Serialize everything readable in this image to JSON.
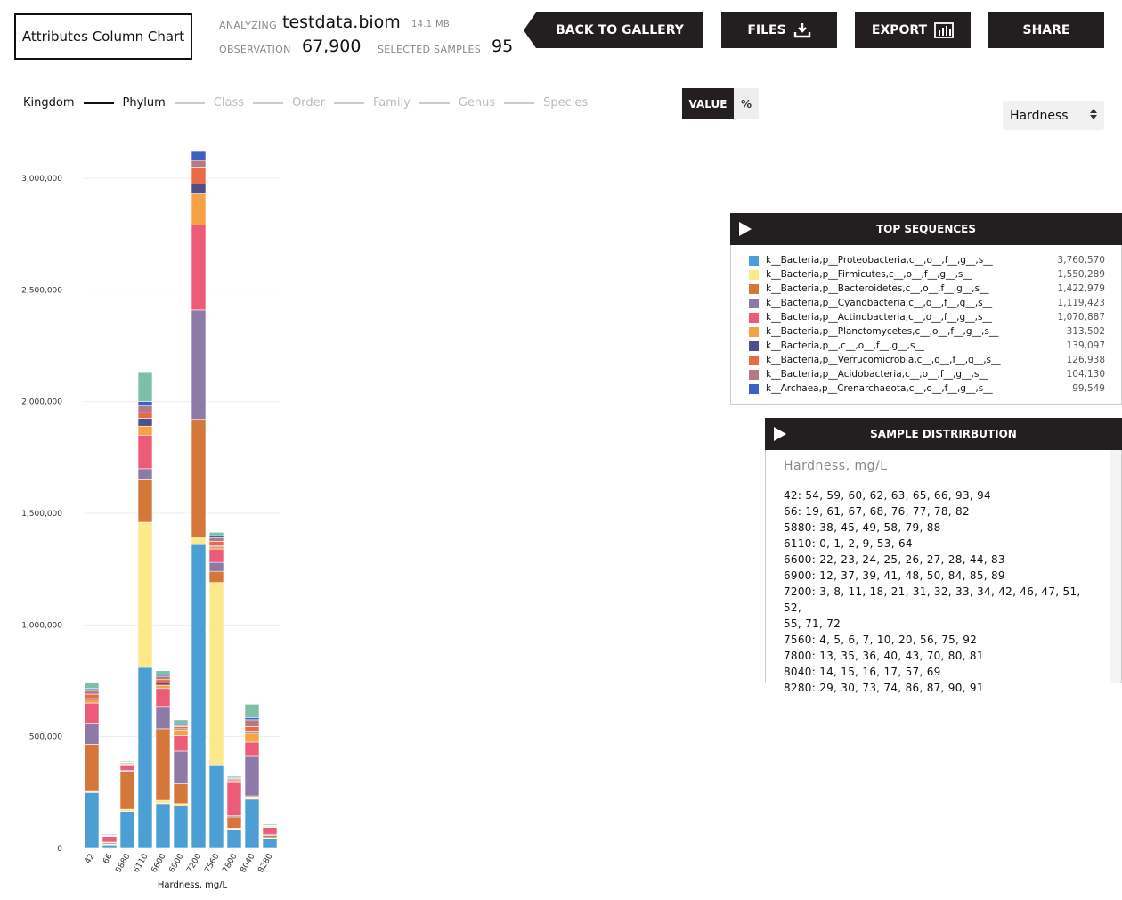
{
  "app": {
    "title": "Attributes Column Chart"
  },
  "meta": {
    "analyzing_label": "ANALYZING",
    "file_name": "testdata.biom",
    "file_size": "14.1 MB",
    "observation_label": "OBSERVATION",
    "observation_value": "67,900",
    "selected_label": "SELECTED SAMPLES",
    "selected_value": "95"
  },
  "nav": {
    "back_label": "BACK TO GALLERY",
    "files_label": "FILES",
    "export_label": "EXPORT",
    "share_label": "SHARE"
  },
  "taxonomy": {
    "levels": [
      "Kingdom",
      "Phylum",
      "Class",
      "Order",
      "Family",
      "Genus",
      "Species"
    ],
    "active_count": 2
  },
  "toggle": {
    "value_label": "VALUE",
    "percent_label": "%"
  },
  "attribute_select": {
    "selected": "Hardness"
  },
  "top_sequences": {
    "title": "TOP SEQUENCES",
    "items": [
      {
        "name": "k__Bacteria,p__Proteobacteria,c__,o__,f__,g__,s__",
        "count": "3,760,570",
        "color": "#4b9fd5"
      },
      {
        "name": "k__Bacteria,p__Firmicutes,c__,o__,f__,g__,s__",
        "count": "1,550,289",
        "color": "#fce98c"
      },
      {
        "name": "k__Bacteria,p__Bacteroidetes,c__,o__,f__,g__,s__",
        "count": "1,422,979",
        "color": "#d5773a"
      },
      {
        "name": "k__Bacteria,p__Cyanobacteria,c__,o__,f__,g__,s__",
        "count": "1,119,423",
        "color": "#8e7aa6"
      },
      {
        "name": "k__Bacteria,p__Actinobacteria,c__,o__,f__,g__,s__",
        "count": "1,070,887",
        "color": "#ee5b78"
      },
      {
        "name": "k__Bacteria,p__Planctomycetes,c__,o__,f__,g__,s__",
        "count": "313,502",
        "color": "#f7a145"
      },
      {
        "name": "k__Bacteria,p__,c__,o__,f__,g__,s__",
        "count": "139,097",
        "color": "#4f4f8a"
      },
      {
        "name": "k__Bacteria,p__Verrucomicrobia,c__,o__,f__,g__,s__",
        "count": "126,938",
        "color": "#ea6a45"
      },
      {
        "name": "k__Bacteria,p__Acidobacteria,c__,o__,f__,g__,s__",
        "count": "104,130",
        "color": "#b57a86"
      },
      {
        "name": "k__Archaea,p__Crenarchaeota,c__,o__,f__,g__,s__",
        "count": "99,549",
        "color": "#3b5fc4"
      }
    ]
  },
  "sample_distribution": {
    "title": "SAMPLE DISTRIRBUTION",
    "attribute": "Hardness, mg/L",
    "lines": [
      "42: 54, 59, 60, 62, 63, 65, 66, 93, 94",
      "66: 19, 61, 67, 68, 76, 77, 78, 82",
      "5880: 38, 45, 49, 58, 79, 88",
      "6110: 0, 1, 2, 9, 53, 64",
      "6600: 22, 23, 24, 25, 26, 27, 28, 44, 83",
      "6900: 12, 37, 39, 41, 48, 50, 84, 85, 89",
      "7200: 3, 8, 11, 18, 21, 31, 32, 33, 34, 42, 46, 47, 51, 52,",
      "55, 71, 72",
      "7560: 4, 5, 6, 7, 10, 20, 56, 75, 92",
      "7800: 13, 35, 36, 40, 43, 70, 80, 81",
      "8040: 14, 15, 16, 17, 57, 69",
      "8280: 29, 30, 73, 74, 86, 87, 90, 91"
    ]
  },
  "chart_data": {
    "type": "bar",
    "stacked": true,
    "xlabel": "Hardness, mg/L",
    "ylabel": "",
    "ylim": [
      0,
      3000000
    ],
    "yticks": [
      0,
      500000,
      1000000,
      1500000,
      2000000,
      2500000,
      3000000
    ],
    "ytick_labels": [
      "0",
      "500,000",
      "1,000,000",
      "1,500,000",
      "2,000,000",
      "2,500,000",
      "3,000,000"
    ],
    "grid": true,
    "categories": [
      "42",
      "66",
      "5880",
      "6110",
      "6600",
      "6900",
      "7200",
      "7560",
      "7800",
      "8040",
      "8280"
    ],
    "series": [
      {
        "name": "k__Bacteria,p__Proteobacteria,c__,o__,f__,g__,s__",
        "color": "#4b9fd5",
        "values": [
          250000,
          15000,
          165000,
          810000,
          200000,
          190000,
          1360000,
          370000,
          85000,
          220000,
          45000
        ]
      },
      {
        "name": "k__Bacteria,p__Firmicutes,c__,o__,f__,g__,s__",
        "color": "#fce98c",
        "values": [
          5000,
          5000,
          10000,
          650000,
          15000,
          10000,
          30000,
          820000,
          5000,
          10000,
          3000
        ]
      },
      {
        "name": "k__Bacteria,p__Bacteroidetes,c__,o__,f__,g__,s__",
        "color": "#d5773a",
        "values": [
          210000,
          5000,
          170000,
          190000,
          320000,
          90000,
          530000,
          50000,
          50000,
          5000,
          10000
        ]
      },
      {
        "name": "k__Bacteria,p__Cyanobacteria,c__,o__,f__,g__,s__",
        "color": "#8e7aa6",
        "values": [
          95000,
          3000,
          5000,
          50000,
          100000,
          145000,
          490000,
          40000,
          5000,
          180000,
          5000
        ]
      },
      {
        "name": "k__Bacteria,p__Actinobacteria,c__,o__,f__,g__,s__",
        "color": "#ee5b78",
        "values": [
          90000,
          25000,
          20000,
          150000,
          80000,
          70000,
          380000,
          60000,
          150000,
          60000,
          30000
        ]
      },
      {
        "name": "k__Bacteria,p__Planctomycetes,c__,o__,f__,g__,s__",
        "color": "#f7a145",
        "values": [
          15000,
          2000,
          5000,
          40000,
          15000,
          25000,
          140000,
          10000,
          5000,
          40000,
          3000
        ]
      },
      {
        "name": "k__Bacteria,p__,c__,o__,f__,g__,s__",
        "color": "#4f4f8a",
        "values": [
          5000,
          1000,
          2000,
          35000,
          10000,
          5000,
          45000,
          5000,
          3000,
          10000,
          2000
        ]
      },
      {
        "name": "k__Bacteria,p__Verrucomicrobia,c__,o__,f__,g__,s__",
        "color": "#ea6a45",
        "values": [
          20000,
          2000,
          3000,
          25000,
          15000,
          10000,
          75000,
          20000,
          5000,
          20000,
          3000
        ]
      },
      {
        "name": "k__Bacteria,p__Acidobacteria,c__,o__,f__,g__,s__",
        "color": "#b57a86",
        "values": [
          20000,
          2000,
          5000,
          30000,
          15000,
          5000,
          30000,
          15000,
          5000,
          30000,
          2000
        ]
      },
      {
        "name": "k__Archaea,p__Crenarchaeota,c__,o__,f__,g__,s__",
        "color": "#3b5fc4",
        "values": [
          5000,
          1000,
          1000,
          20000,
          5000,
          5000,
          40000,
          10000,
          3000,
          10000,
          1000
        ]
      },
      {
        "name": "Other",
        "color": "#7cc0a8",
        "values": [
          25000,
          4000,
          4000,
          130000,
          20000,
          20000,
          90000,
          15000,
          7000,
          60000,
          5000
        ]
      }
    ]
  }
}
